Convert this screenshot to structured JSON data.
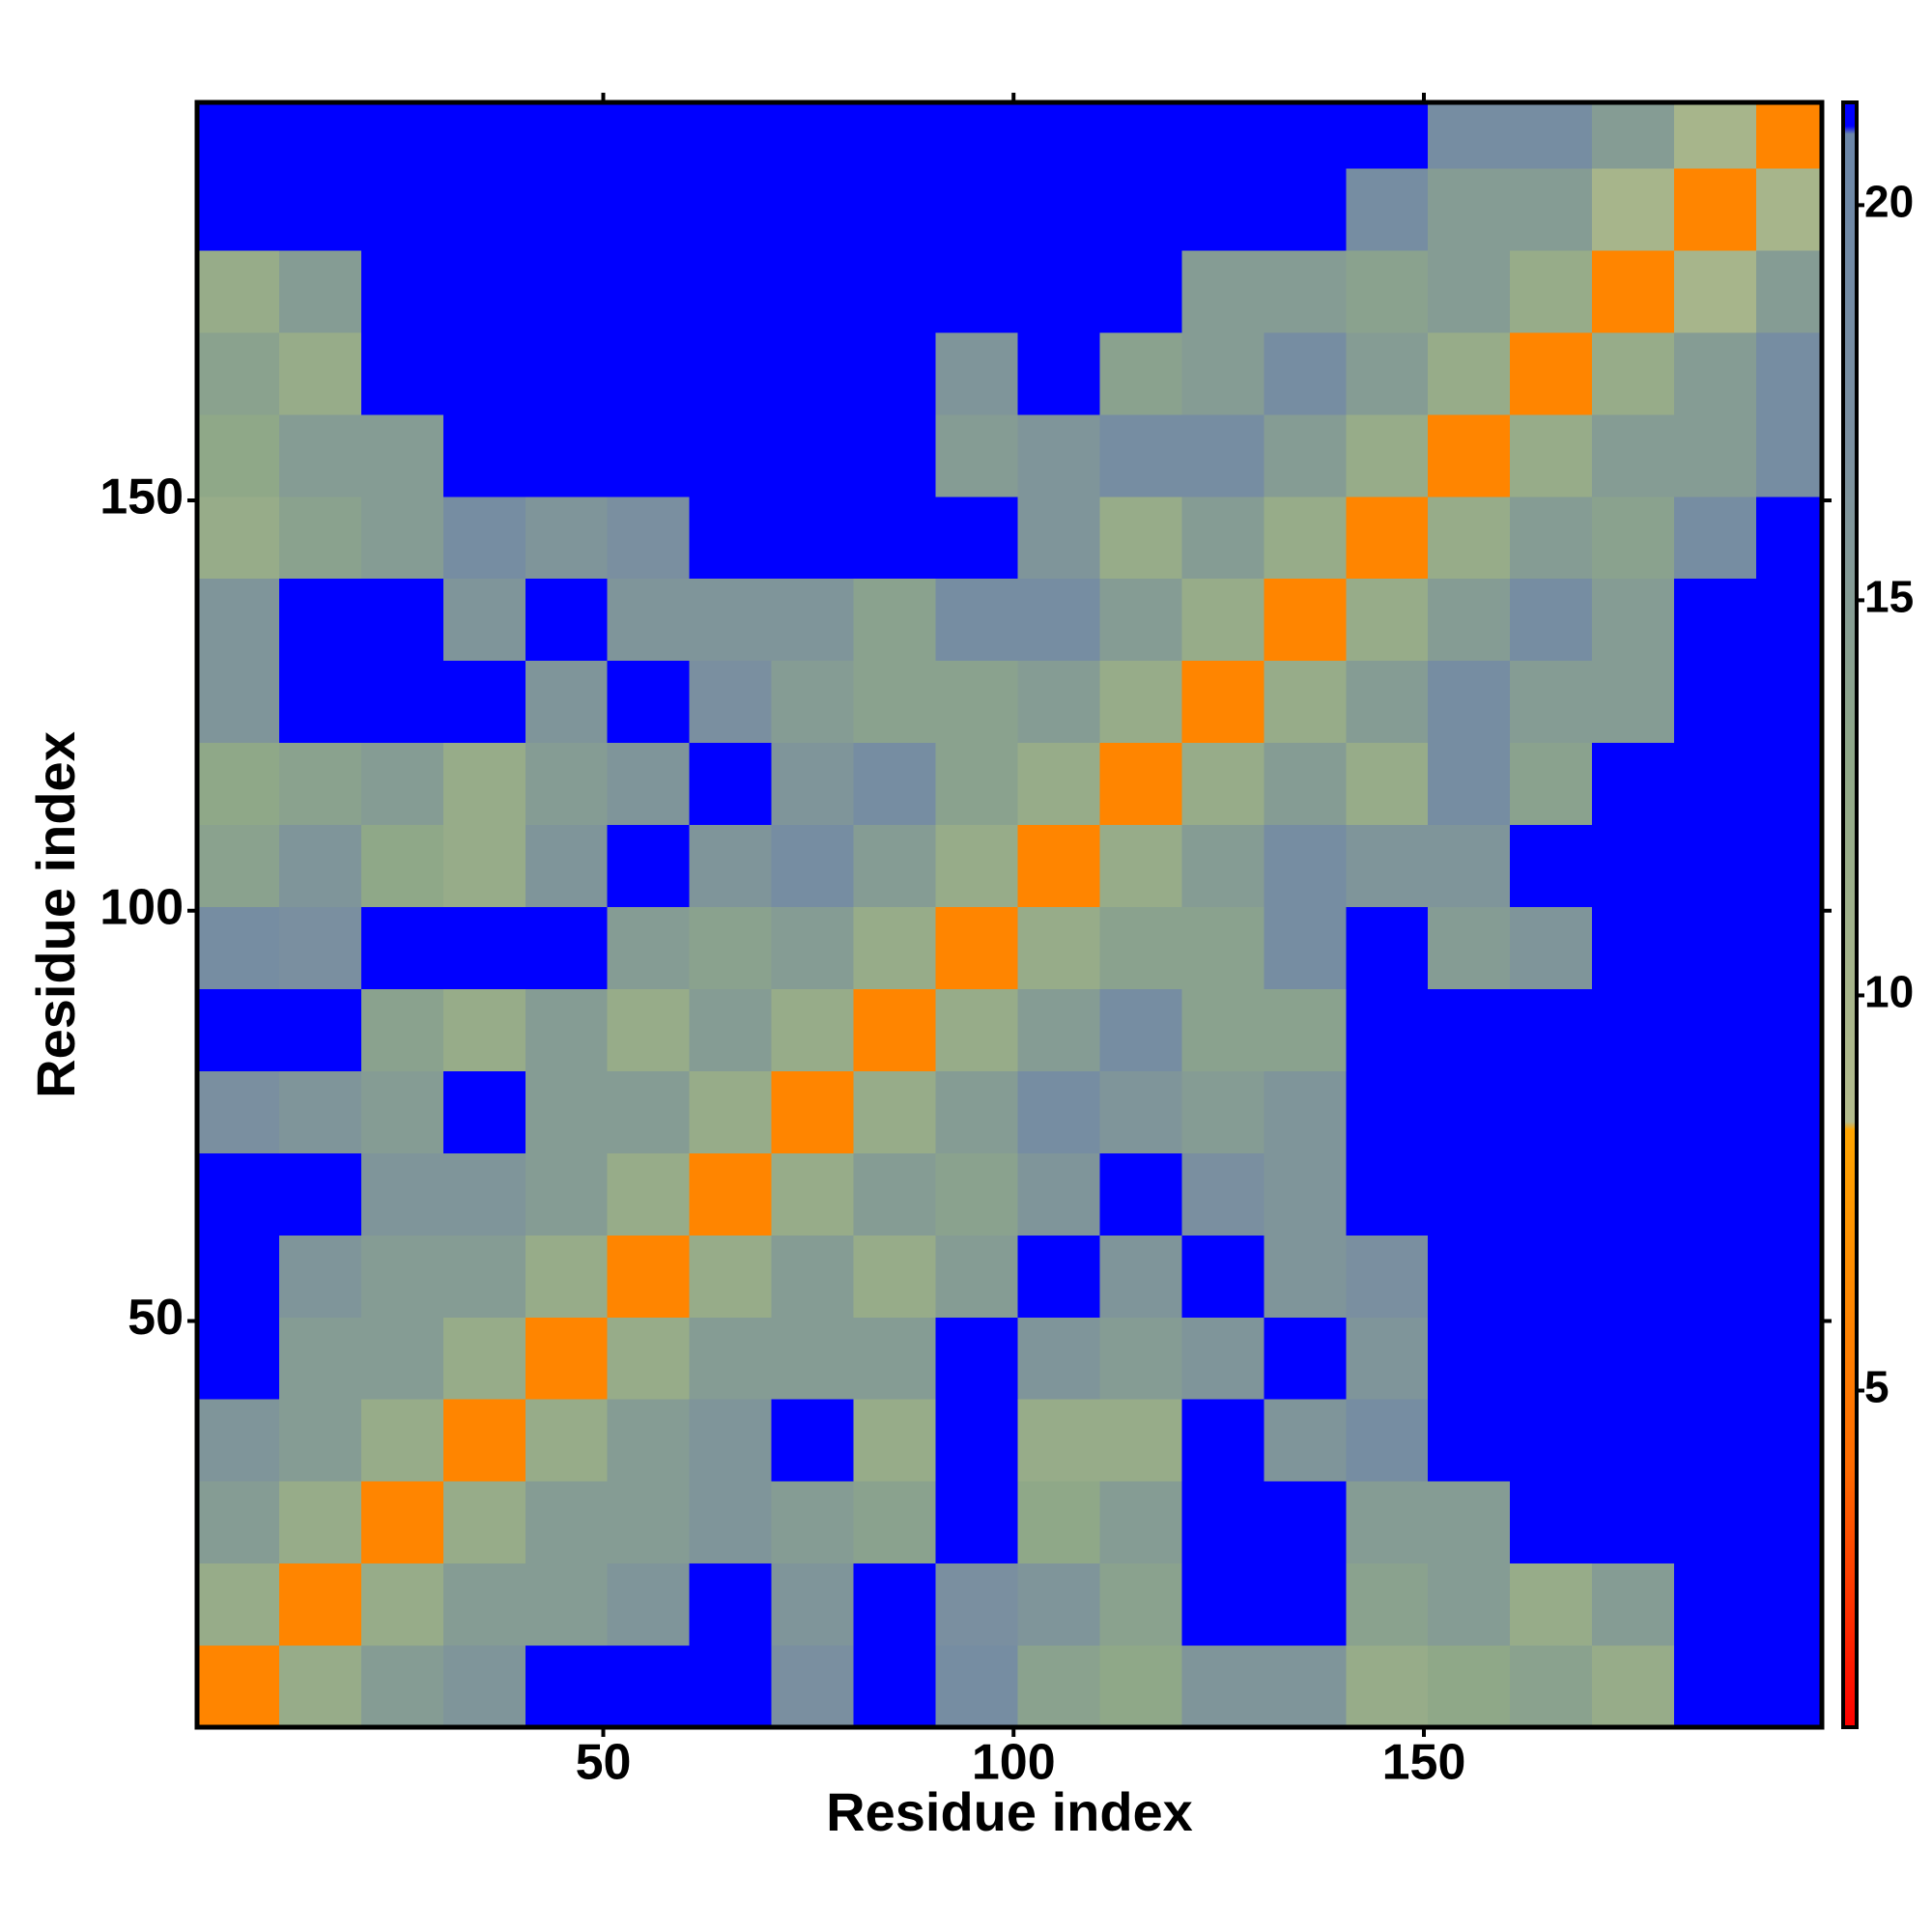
{
  "chart_data": {
    "type": "heatmap",
    "x_label": "Residue index",
    "y_label": "Residue index",
    "bins": [
      0.5,
      10.5,
      20.5,
      30.5,
      40.5,
      50.5,
      60.5,
      70.5,
      80.5,
      90.5,
      100.5,
      110.5,
      120.5,
      130.5,
      140.5,
      150.5,
      160.5,
      170.5,
      180.5,
      190.5,
      198.5
    ],
    "values": [
      [
        6,
        12,
        15,
        16,
        21,
        21,
        21,
        17,
        21,
        18,
        14,
        13,
        16,
        16,
        12,
        13,
        14,
        12,
        21,
        21
      ],
      [
        12,
        6,
        12,
        15,
        15,
        16,
        21,
        16,
        21,
        17,
        16,
        14,
        21,
        21,
        14,
        15,
        12,
        15,
        21,
        21
      ],
      [
        15,
        12,
        6,
        12,
        15,
        15,
        16,
        15,
        14,
        21,
        13,
        15,
        21,
        21,
        15,
        15,
        21,
        21,
        21,
        21
      ],
      [
        16,
        15,
        12,
        6,
        12,
        15,
        16,
        21,
        12,
        21,
        12,
        12,
        21,
        16,
        18,
        21,
        21,
        21,
        21,
        21
      ],
      [
        21,
        15,
        15,
        12,
        6,
        12,
        15,
        15,
        15,
        21,
        16,
        15,
        16,
        21,
        16,
        21,
        21,
        21,
        21,
        21
      ],
      [
        21,
        16,
        15,
        15,
        12,
        6,
        12,
        15,
        12,
        15,
        21,
        16,
        21,
        16,
        17,
        21,
        21,
        21,
        21,
        21
      ],
      [
        21,
        21,
        16,
        16,
        15,
        12,
        6,
        12,
        15,
        14,
        16,
        21,
        17,
        16,
        21,
        21,
        21,
        21,
        21,
        21
      ],
      [
        17,
        16,
        15,
        21,
        15,
        15,
        12,
        6,
        12,
        15,
        18,
        16,
        15,
        16,
        21,
        21,
        21,
        21,
        21,
        21
      ],
      [
        21,
        21,
        14,
        12,
        15,
        12,
        15,
        12,
        6,
        12,
        15,
        18,
        14,
        14,
        21,
        21,
        21,
        21,
        21,
        21
      ],
      [
        18,
        17,
        21,
        21,
        21,
        15,
        14,
        15,
        12,
        6,
        12,
        14,
        14,
        18,
        21,
        15,
        16,
        21,
        21,
        21
      ],
      [
        14,
        16,
        13,
        12,
        16,
        21,
        16,
        18,
        15,
        12,
        6,
        12,
        15,
        18,
        16,
        16,
        21,
        21,
        21,
        21
      ],
      [
        13,
        14,
        15,
        12,
        15,
        16,
        21,
        16,
        18,
        14,
        12,
        6,
        12,
        15,
        12,
        18,
        14,
        21,
        21,
        21
      ],
      [
        16,
        21,
        21,
        21,
        16,
        21,
        17,
        15,
        14,
        14,
        15,
        12,
        6,
        12,
        15,
        18,
        15,
        15,
        21,
        21
      ],
      [
        16,
        21,
        21,
        16,
        21,
        16,
        16,
        16,
        14,
        18,
        18,
        15,
        12,
        6,
        12,
        15,
        18,
        15,
        21,
        21
      ],
      [
        12,
        14,
        15,
        18,
        16,
        17,
        21,
        21,
        21,
        21,
        16,
        12,
        15,
        12,
        6,
        12,
        15,
        14,
        18,
        21
      ],
      [
        13,
        15,
        15,
        21,
        21,
        21,
        21,
        21,
        21,
        15,
        16,
        18,
        18,
        15,
        12,
        6,
        12,
        15,
        15,
        18
      ],
      [
        14,
        12,
        21,
        21,
        21,
        21,
        21,
        21,
        21,
        16,
        21,
        14,
        15,
        18,
        15,
        12,
        6,
        12,
        15,
        18
      ],
      [
        12,
        15,
        21,
        21,
        21,
        21,
        21,
        21,
        21,
        21,
        21,
        21,
        15,
        15,
        14,
        15,
        12,
        6,
        10,
        15
      ],
      [
        21,
        21,
        21,
        21,
        21,
        21,
        21,
        21,
        21,
        21,
        21,
        21,
        21,
        21,
        18,
        15,
        15,
        10,
        6,
        10
      ],
      [
        21,
        21,
        21,
        21,
        21,
        21,
        21,
        21,
        21,
        21,
        21,
        21,
        21,
        21,
        21,
        18,
        18,
        15,
        10,
        6
      ]
    ],
    "xlim": [
      0.5,
      198.5
    ],
    "ylim": [
      0.5,
      198.5
    ],
    "xticks": [
      50,
      100,
      150
    ],
    "yticks": [
      50,
      100,
      150
    ],
    "clim": [
      0.74,
      21.3
    ],
    "cticks": [
      5,
      10,
      15,
      20
    ],
    "colorscale": [
      [
        0.74,
        "#ff0000"
      ],
      [
        4,
        "#ff6a00"
      ],
      [
        8.3,
        "#ffa500"
      ],
      [
        8.4,
        "#b4bc8c"
      ],
      [
        13,
        "#8fa888"
      ],
      [
        17,
        "#7a8fa0"
      ],
      [
        20.9,
        "#6b86a8"
      ],
      [
        21,
        "#0000ff"
      ],
      [
        21.3,
        "#0000ff"
      ]
    ]
  }
}
